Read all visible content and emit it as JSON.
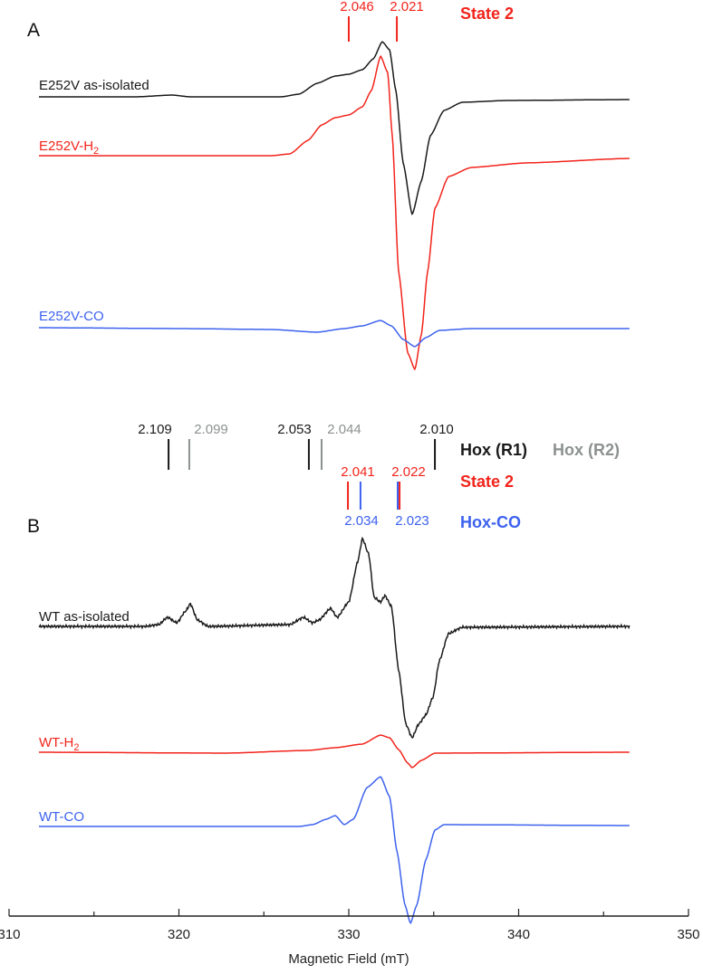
{
  "colors": {
    "black": "#1a1a1a",
    "red": "#f2241b",
    "blue": "#3d62ee",
    "gray": "#8c9290"
  },
  "chart_data": {
    "type": "line",
    "xlabel": "Magnetic Field (mT)",
    "ylabel": "",
    "xlim": [
      310,
      350
    ],
    "xticks": [
      310,
      320,
      330,
      340,
      350
    ],
    "minor_xticks": [
      315,
      325,
      335,
      345
    ],
    "grid": false,
    "panels": [
      {
        "label": "A",
        "markers": [
          {
            "g": "2.046",
            "field": 330.0,
            "color": "red",
            "group": "top"
          },
          {
            "g": "2.021",
            "field": 332.83,
            "color": "red",
            "group": "top"
          }
        ],
        "legend": [
          {
            "text": "State 2",
            "color": "red"
          }
        ],
        "series": [
          {
            "name": "E252V as-isolated",
            "color": "black",
            "points": [
              [
                311.76,
                0
              ],
              [
                317.47,
                0
              ],
              [
                319.6,
                2
              ],
              [
                320.67,
                0
              ],
              [
                326.0,
                0
              ],
              [
                327.07,
                3
              ],
              [
                328.13,
                15
              ],
              [
                329.2,
                23
              ],
              [
                330.0,
                25
              ],
              [
                330.8,
                30
              ],
              [
                331.44,
                42
              ],
              [
                331.97,
                61
              ],
              [
                332.4,
                52
              ],
              [
                332.77,
                7
              ],
              [
                333.2,
                -73
              ],
              [
                333.73,
                -130
              ],
              [
                334.27,
                -93
              ],
              [
                334.8,
                -43
              ],
              [
                335.6,
                -15
              ],
              [
                336.67,
                -6
              ],
              [
                339.33,
                -4
              ],
              [
                346.53,
                -3
              ]
            ]
          },
          {
            "name": "E252V-H2",
            "color": "red",
            "points": [
              [
                311.76,
                0
              ],
              [
                325.47,
                0
              ],
              [
                326.53,
                2
              ],
              [
                327.6,
                17
              ],
              [
                328.4,
                34
              ],
              [
                329.2,
                42
              ],
              [
                330.0,
                45
              ],
              [
                330.8,
                54
              ],
              [
                331.33,
                72
              ],
              [
                331.87,
                110
              ],
              [
                332.29,
                92
              ],
              [
                332.56,
                22
              ],
              [
                332.93,
                -128
              ],
              [
                333.47,
                -218
              ],
              [
                333.89,
                -236
              ],
              [
                334.27,
                -198
              ],
              [
                334.64,
                -128
              ],
              [
                335.07,
                -58
              ],
              [
                335.87,
                -23
              ],
              [
                337.2,
                -13
              ],
              [
                340.4,
                -8
              ],
              [
                346.53,
                -3
              ]
            ]
          },
          {
            "name": "E252V-CO",
            "color": "blue",
            "points": [
              [
                311.76,
                1
              ],
              [
                320.13,
                0
              ],
              [
                325.47,
                -1
              ],
              [
                328.13,
                -4
              ],
              [
                329.73,
                0
              ],
              [
                330.8,
                3
              ],
              [
                331.87,
                9
              ],
              [
                332.51,
                3
              ],
              [
                333.2,
                -12
              ],
              [
                333.89,
                -20
              ],
              [
                334.53,
                -10
              ],
              [
                335.33,
                -2
              ],
              [
                337.2,
                0
              ],
              [
                346.53,
                0
              ]
            ]
          }
        ]
      },
      {
        "label": "B",
        "markers": [
          {
            "g": "2.109",
            "field": 319.39,
            "color": "black",
            "group": "hox"
          },
          {
            "g": "2.099",
            "field": 320.61,
            "color": "gray",
            "group": "hox"
          },
          {
            "g": "2.053",
            "field": 327.65,
            "color": "black",
            "group": "hox"
          },
          {
            "g": "2.044",
            "field": 328.4,
            "color": "gray",
            "group": "hox"
          },
          {
            "g": "2.010",
            "field": 335.07,
            "color": "black",
            "group": "hox"
          },
          {
            "g": "2.041",
            "field": 329.95,
            "color": "red",
            "group": "state2"
          },
          {
            "g": "2.022",
            "field": 332.99,
            "color": "red",
            "group": "state2"
          },
          {
            "g": "2.034",
            "field": 330.69,
            "color": "blue",
            "group": "hoxco"
          },
          {
            "g": "2.023",
            "field": 332.88,
            "color": "blue",
            "group": "hoxco"
          }
        ],
        "legend": [
          {
            "text": "Hox (R1)",
            "color": "black"
          },
          {
            "text": "Hox (R2)",
            "color": "gray"
          },
          {
            "text": "State 2",
            "color": "red"
          },
          {
            "text": "Hox-CO",
            "color": "blue"
          }
        ],
        "series": [
          {
            "name": "WT as-isolated",
            "color": "black",
            "points": [
              [
                311.76,
                0
              ],
              [
                318.0,
                0
              ],
              [
                318.8,
                2
              ],
              [
                319.33,
                10
              ],
              [
                319.87,
                4
              ],
              [
                320.4,
                17
              ],
              [
                320.67,
                25
              ],
              [
                321.09,
                7
              ],
              [
                321.73,
                0
              ],
              [
                326.53,
                2
              ],
              [
                327.33,
                10
              ],
              [
                327.87,
                4
              ],
              [
                328.24,
                7
              ],
              [
                328.93,
                20
              ],
              [
                329.31,
                10
              ],
              [
                330.0,
                27
              ],
              [
                330.53,
                72
              ],
              [
                330.8,
                97
              ],
              [
                331.17,
                80
              ],
              [
                331.49,
                32
              ],
              [
                331.87,
                27
              ],
              [
                332.13,
                34
              ],
              [
                332.51,
                22
              ],
              [
                332.93,
                -48
              ],
              [
                333.36,
                -108
              ],
              [
                333.73,
                -123
              ],
              [
                334.11,
                -108
              ],
              [
                334.53,
                -98
              ],
              [
                334.96,
                -78
              ],
              [
                335.33,
                -38
              ],
              [
                335.87,
                -8
              ],
              [
                336.67,
                -1
              ],
              [
                346.53,
                0
              ]
            ]
          },
          {
            "name": "WT-H2",
            "color": "red",
            "points": [
              [
                311.76,
                0
              ],
              [
                322.8,
                -1
              ],
              [
                327.6,
                2
              ],
              [
                329.2,
                5
              ],
              [
                330.8,
                9
              ],
              [
                331.87,
                19
              ],
              [
                332.4,
                16
              ],
              [
                332.93,
                3
              ],
              [
                333.47,
                -12
              ],
              [
                333.73,
                -17
              ],
              [
                334.27,
                -9
              ],
              [
                335.07,
                -1
              ],
              [
                346.53,
                0
              ]
            ]
          },
          {
            "name": "WT-CO",
            "color": "blue",
            "points": [
              [
                311.76,
                0
              ],
              [
                327.07,
                0
              ],
              [
                327.87,
                2
              ],
              [
                328.67,
                8
              ],
              [
                329.2,
                12
              ],
              [
                329.73,
                2
              ],
              [
                330.27,
                8
              ],
              [
                331.07,
                43
              ],
              [
                331.87,
                55
              ],
              [
                332.4,
                33
              ],
              [
                332.83,
                -27
              ],
              [
                333.31,
                -87
              ],
              [
                333.63,
                -107
              ],
              [
                334.0,
                -87
              ],
              [
                334.53,
                -37
              ],
              [
                335.07,
                -4
              ],
              [
                335.6,
                2
              ],
              [
                346.53,
                1
              ]
            ]
          }
        ]
      }
    ]
  }
}
